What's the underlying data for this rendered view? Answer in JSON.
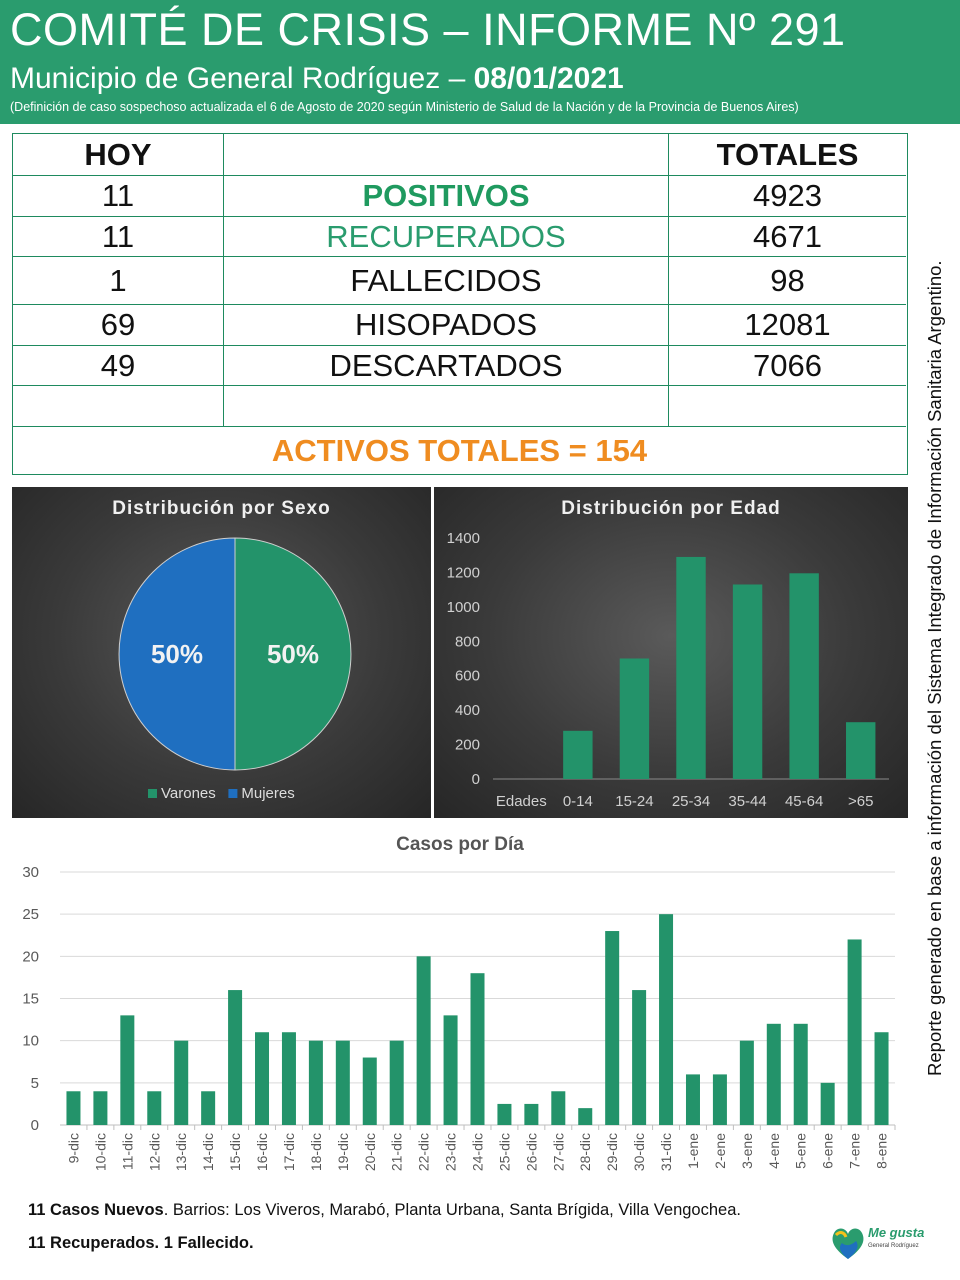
{
  "header": {
    "title": "COMITÉ DE CRISIS – INFORME Nº 291",
    "subtitle": "Municipio de General Rodríguez – ",
    "date": "08/01/2021",
    "note": "(Definición de caso sospechoso actualizada el 6 de Agosto de 2020 según Ministerio de Salud de la Nación y de la Provincia de Buenos Aires)"
  },
  "table": {
    "hoy_label": "HOY",
    "totales_label": "TOTALES",
    "rows": [
      {
        "hoy": "11",
        "label": "POSITIVOS",
        "total": "4923"
      },
      {
        "hoy": "11",
        "label": "RECUPERADOS",
        "total": "4671"
      },
      {
        "hoy": "1",
        "label": "FALLECIDOS",
        "total": "98"
      },
      {
        "hoy": "69",
        "label": "HISOPADOS",
        "total": "12081"
      },
      {
        "hoy": "49",
        "label": "DESCARTADOS",
        "total": "7066"
      }
    ],
    "activos": "ACTIVOS TOTALES = 154"
  },
  "side_text": "Reporte generado en base a información del Sistema Integrado de Información Sanitaria Argentino.",
  "footer": {
    "line1_bold": "11 Casos Nuevos",
    "line1_rest": ". Barrios: Los Viveros, Marabó, Planta Urbana, Santa Brígida, Villa Vengochea.",
    "line2": "11 Recuperados. 1 Fallecido."
  },
  "logo": {
    "brand": "Me gusta",
    "sub": "General Rodríguez"
  },
  "colors": {
    "green": "#2a9c6e",
    "bar_green": "#23936a",
    "blue": "#1f6fc0",
    "orange": "#ef8c20"
  },
  "chart_data": [
    {
      "type": "pie",
      "title": "Distribución por Sexo",
      "categories": [
        "Varones",
        "Mujeres"
      ],
      "values": [
        50,
        50
      ],
      "labels": [
        "50%",
        "50%"
      ],
      "colors": [
        "#23936a",
        "#1f6fc0"
      ],
      "legend": "bottom"
    },
    {
      "type": "bar",
      "title": "Distribución por Edad",
      "categories": [
        "Edades",
        "0-14",
        "15-24",
        "25-34",
        "35-44",
        "45-64",
        ">65"
      ],
      "values": [
        0,
        280,
        700,
        1290,
        1130,
        1195,
        330
      ],
      "ylim": [
        0,
        1400
      ],
      "yticks": [
        0,
        200,
        400,
        600,
        800,
        1000,
        1200,
        1400
      ],
      "grid": false
    },
    {
      "type": "bar",
      "title": "Casos por Día",
      "categories": [
        "9-dic",
        "10-dic",
        "11-dic",
        "12-dic",
        "13-dic",
        "14-dic",
        "15-dic",
        "16-dic",
        "17-dic",
        "18-dic",
        "19-dic",
        "20-dic",
        "21-dic",
        "22-dic",
        "23-dic",
        "24-dic",
        "25-dic",
        "26-dic",
        "27-dic",
        "28-dic",
        "29-dic",
        "30-dic",
        "31-dic",
        "1-ene",
        "2-ene",
        "3-ene",
        "4-ene",
        "5-ene",
        "6-ene",
        "7-ene",
        "8-ene"
      ],
      "values": [
        4,
        4,
        13,
        4,
        10,
        4,
        16,
        11,
        11,
        10,
        10,
        8,
        10,
        20,
        13,
        18,
        2.5,
        2.5,
        4,
        2,
        23,
        16,
        25,
        6,
        6,
        10,
        12,
        12,
        5,
        22,
        11
      ],
      "ylim": [
        0,
        30
      ],
      "yticks": [
        0,
        5,
        10,
        15,
        20,
        25,
        30
      ],
      "grid": true
    }
  ]
}
